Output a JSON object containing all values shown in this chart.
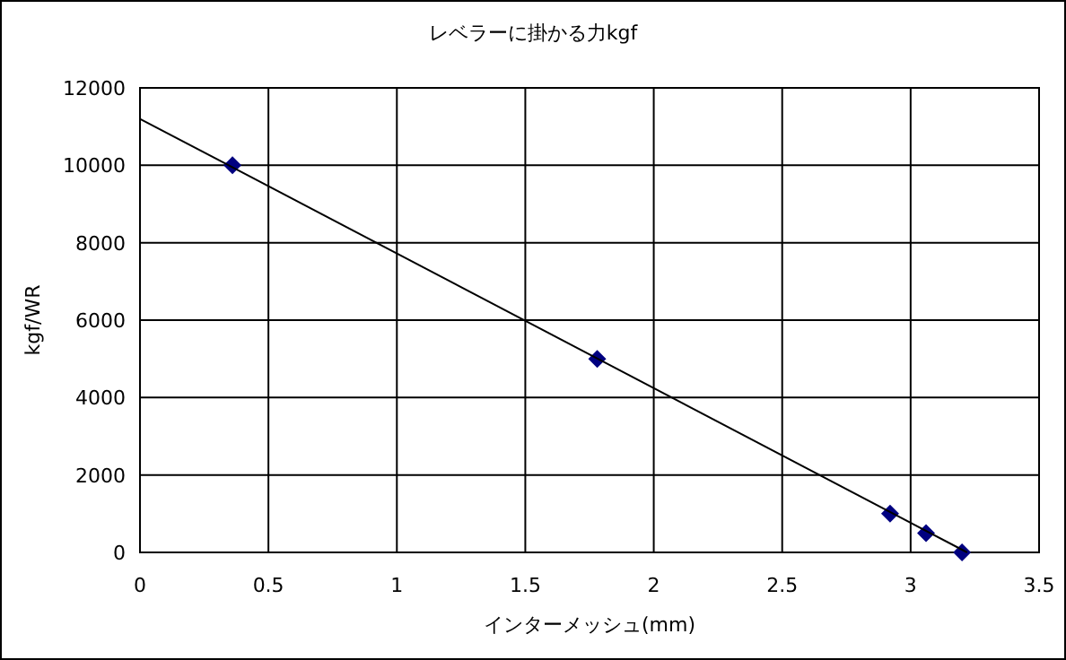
{
  "chart_data": {
    "type": "scatter",
    "title": "レベラーに掛かる力kgf",
    "xlabel": "インターメッシュ(mm)",
    "ylabel": "kgf/WR",
    "xlim": [
      0,
      3.5
    ],
    "xticks": [
      0,
      0.5,
      1,
      1.5,
      2,
      2.5,
      3,
      3.5
    ],
    "ylim": [
      0,
      12000
    ],
    "yticks": [
      0,
      2000,
      4000,
      6000,
      8000,
      10000,
      12000
    ],
    "grid": true,
    "marker": "diamond",
    "series": [
      {
        "color": "#000080",
        "x": [
          0.36,
          1.78,
          2.92,
          3.06,
          3.2
        ],
        "values": [
          10000,
          5000,
          1000,
          500,
          0
        ]
      },
      {
        "type": "line",
        "color": "#000000",
        "marker": "none",
        "x": [
          0,
          3.22
        ],
        "values": [
          11200,
          0
        ]
      }
    ]
  }
}
